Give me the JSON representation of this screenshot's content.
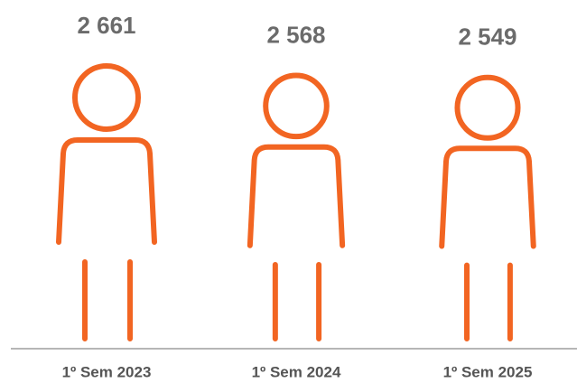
{
  "chart_data": {
    "type": "pictogram",
    "categories": [
      "1º Sem 2023",
      "1º Sem 2024",
      "1º Sem 2025"
    ],
    "values": [
      2661,
      2568,
      2549
    ],
    "value_labels": [
      "2 661",
      "2 568",
      "2 549"
    ],
    "color": "#f26522"
  }
}
